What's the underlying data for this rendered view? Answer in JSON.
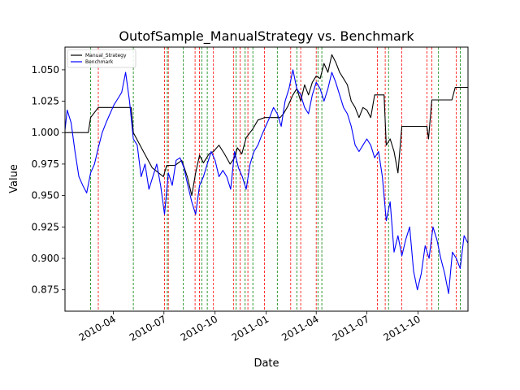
{
  "chart_data": {
    "type": "line",
    "title": "OutofSample_ManualStrategy vs. Benchmark",
    "xlabel": "Date",
    "ylabel": "Value",
    "x_range": [
      "2010-01-04",
      "2011-12-30"
    ],
    "ylim": [
      0.858,
      1.068
    ],
    "grid": false,
    "legend_position": "top-left",
    "xticks": [
      {
        "date": "2010-04-01",
        "label": "2010-04"
      },
      {
        "date": "2010-07-01",
        "label": "2010-07"
      },
      {
        "date": "2010-10-01",
        "label": "2010-10"
      },
      {
        "date": "2011-01-01",
        "label": "2011-01"
      },
      {
        "date": "2011-04-01",
        "label": "2011-04"
      },
      {
        "date": "2011-07-01",
        "label": "2011-07"
      },
      {
        "date": "2011-10-01",
        "label": "2011-10"
      }
    ],
    "yticks": [
      0.875,
      0.9,
      0.925,
      0.95,
      0.975,
      1.0,
      1.025,
      1.05
    ],
    "series": [
      {
        "name": "Manual_Strategy",
        "color": "#000000",
        "points": [
          [
            "2010-01-04",
            1.0
          ],
          [
            "2010-02-15",
            1.0
          ],
          [
            "2010-02-19",
            1.012
          ],
          [
            "2010-03-05",
            1.02
          ],
          [
            "2010-05-03",
            1.02
          ],
          [
            "2010-05-07",
            1.0
          ],
          [
            "2010-05-25",
            0.985
          ],
          [
            "2010-06-10",
            0.972
          ],
          [
            "2010-06-30",
            0.965
          ],
          [
            "2010-07-06",
            0.974
          ],
          [
            "2010-07-21",
            0.974
          ],
          [
            "2010-08-02",
            0.978
          ],
          [
            "2010-08-12",
            0.965
          ],
          [
            "2010-08-20",
            0.95
          ],
          [
            "2010-08-27",
            0.968
          ],
          [
            "2010-09-03",
            0.982
          ],
          [
            "2010-09-10",
            0.976
          ],
          [
            "2010-09-20",
            0.983
          ],
          [
            "2010-09-28",
            0.985
          ],
          [
            "2010-10-08",
            0.99
          ],
          [
            "2010-10-18",
            0.983
          ],
          [
            "2010-10-28",
            0.975
          ],
          [
            "2010-11-05",
            0.98
          ],
          [
            "2010-11-10",
            0.988
          ],
          [
            "2010-11-18",
            0.983
          ],
          [
            "2010-11-26",
            0.996
          ],
          [
            "2010-12-08",
            1.003
          ],
          [
            "2010-12-17",
            1.01
          ],
          [
            "2010-12-29",
            1.012
          ],
          [
            "2011-01-26",
            1.012
          ],
          [
            "2011-02-01",
            1.015
          ],
          [
            "2011-02-09",
            1.021
          ],
          [
            "2011-02-18",
            1.03
          ],
          [
            "2011-02-25",
            1.035
          ],
          [
            "2011-03-04",
            1.025
          ],
          [
            "2011-03-11",
            1.038
          ],
          [
            "2011-03-18",
            1.03
          ],
          [
            "2011-03-25",
            1.04
          ],
          [
            "2011-04-01",
            1.045
          ],
          [
            "2011-04-08",
            1.043
          ],
          [
            "2011-04-15",
            1.055
          ],
          [
            "2011-04-22",
            1.048
          ],
          [
            "2011-04-29",
            1.062
          ],
          [
            "2011-05-06",
            1.056
          ],
          [
            "2011-05-13",
            1.048
          ],
          [
            "2011-05-20",
            1.043
          ],
          [
            "2011-05-27",
            1.038
          ],
          [
            "2011-06-03",
            1.025
          ],
          [
            "2011-06-10",
            1.02
          ],
          [
            "2011-06-17",
            1.012
          ],
          [
            "2011-06-24",
            1.02
          ],
          [
            "2011-07-01",
            1.018
          ],
          [
            "2011-07-08",
            1.012
          ],
          [
            "2011-07-15",
            1.03
          ],
          [
            "2011-08-01",
            1.03
          ],
          [
            "2011-08-05",
            0.99
          ],
          [
            "2011-08-12",
            0.995
          ],
          [
            "2011-08-19",
            0.985
          ],
          [
            "2011-08-26",
            0.968
          ],
          [
            "2011-09-02",
            1.005
          ],
          [
            "2011-10-17",
            1.005
          ],
          [
            "2011-10-20",
            0.995
          ],
          [
            "2011-10-26",
            1.026
          ],
          [
            "2011-12-01",
            1.026
          ],
          [
            "2011-12-07",
            1.036
          ],
          [
            "2011-12-30",
            1.036
          ]
        ]
      },
      {
        "name": "Benchmark",
        "color": "#0000ff",
        "points": [
          [
            "2010-01-04",
            1.002
          ],
          [
            "2010-01-08",
            1.018
          ],
          [
            "2010-01-15",
            1.008
          ],
          [
            "2010-01-22",
            0.985
          ],
          [
            "2010-01-29",
            0.965
          ],
          [
            "2010-02-05",
            0.958
          ],
          [
            "2010-02-12",
            0.952
          ],
          [
            "2010-02-19",
            0.968
          ],
          [
            "2010-02-26",
            0.975
          ],
          [
            "2010-03-05",
            0.988
          ],
          [
            "2010-03-12",
            1.0
          ],
          [
            "2010-03-19",
            1.008
          ],
          [
            "2010-03-26",
            1.015
          ],
          [
            "2010-04-02",
            1.022
          ],
          [
            "2010-04-09",
            1.027
          ],
          [
            "2010-04-16",
            1.032
          ],
          [
            "2010-04-23",
            1.048
          ],
          [
            "2010-04-30",
            1.025
          ],
          [
            "2010-05-07",
            0.995
          ],
          [
            "2010-05-14",
            0.99
          ],
          [
            "2010-05-21",
            0.965
          ],
          [
            "2010-05-28",
            0.975
          ],
          [
            "2010-06-04",
            0.955
          ],
          [
            "2010-06-11",
            0.965
          ],
          [
            "2010-06-18",
            0.975
          ],
          [
            "2010-06-25",
            0.958
          ],
          [
            "2010-07-02",
            0.935
          ],
          [
            "2010-07-09",
            0.968
          ],
          [
            "2010-07-16",
            0.958
          ],
          [
            "2010-07-23",
            0.978
          ],
          [
            "2010-07-30",
            0.98
          ],
          [
            "2010-08-06",
            0.972
          ],
          [
            "2010-08-13",
            0.958
          ],
          [
            "2010-08-20",
            0.945
          ],
          [
            "2010-08-27",
            0.935
          ],
          [
            "2010-09-03",
            0.958
          ],
          [
            "2010-09-10",
            0.965
          ],
          [
            "2010-09-17",
            0.975
          ],
          [
            "2010-09-24",
            0.985
          ],
          [
            "2010-10-01",
            0.978
          ],
          [
            "2010-10-08",
            0.965
          ],
          [
            "2010-10-15",
            0.97
          ],
          [
            "2010-10-22",
            0.965
          ],
          [
            "2010-10-29",
            0.955
          ],
          [
            "2010-11-05",
            0.985
          ],
          [
            "2010-11-12",
            0.972
          ],
          [
            "2010-11-19",
            0.965
          ],
          [
            "2010-11-26",
            0.955
          ],
          [
            "2010-12-03",
            0.975
          ],
          [
            "2010-12-10",
            0.985
          ],
          [
            "2010-12-17",
            0.99
          ],
          [
            "2010-12-24",
            0.998
          ],
          [
            "2010-12-31",
            1.005
          ],
          [
            "2011-01-07",
            1.012
          ],
          [
            "2011-01-14",
            1.02
          ],
          [
            "2011-01-21",
            1.015
          ],
          [
            "2011-01-28",
            1.005
          ],
          [
            "2011-02-04",
            1.025
          ],
          [
            "2011-02-11",
            1.035
          ],
          [
            "2011-02-18",
            1.05
          ],
          [
            "2011-02-25",
            1.035
          ],
          [
            "2011-03-04",
            1.03
          ],
          [
            "2011-03-11",
            1.02
          ],
          [
            "2011-03-18",
            1.015
          ],
          [
            "2011-03-25",
            1.03
          ],
          [
            "2011-04-01",
            1.04
          ],
          [
            "2011-04-08",
            1.035
          ],
          [
            "2011-04-15",
            1.025
          ],
          [
            "2011-04-22",
            1.035
          ],
          [
            "2011-04-29",
            1.048
          ],
          [
            "2011-05-06",
            1.04
          ],
          [
            "2011-05-13",
            1.03
          ],
          [
            "2011-05-20",
            1.02
          ],
          [
            "2011-05-27",
            1.015
          ],
          [
            "2011-06-03",
            1.005
          ],
          [
            "2011-06-10",
            0.99
          ],
          [
            "2011-06-17",
            0.985
          ],
          [
            "2011-06-24",
            0.99
          ],
          [
            "2011-07-01",
            0.995
          ],
          [
            "2011-07-08",
            0.99
          ],
          [
            "2011-07-15",
            0.98
          ],
          [
            "2011-07-22",
            0.985
          ],
          [
            "2011-07-29",
            0.965
          ],
          [
            "2011-08-05",
            0.93
          ],
          [
            "2011-08-12",
            0.945
          ],
          [
            "2011-08-19",
            0.905
          ],
          [
            "2011-08-26",
            0.918
          ],
          [
            "2011-09-02",
            0.902
          ],
          [
            "2011-09-09",
            0.915
          ],
          [
            "2011-09-16",
            0.925
          ],
          [
            "2011-09-23",
            0.89
          ],
          [
            "2011-09-30",
            0.875
          ],
          [
            "2011-10-07",
            0.888
          ],
          [
            "2011-10-14",
            0.91
          ],
          [
            "2011-10-21",
            0.9
          ],
          [
            "2011-10-28",
            0.925
          ],
          [
            "2011-11-04",
            0.915
          ],
          [
            "2011-11-11",
            0.9
          ],
          [
            "2011-11-18",
            0.888
          ],
          [
            "2011-11-25",
            0.872
          ],
          [
            "2011-12-02",
            0.905
          ],
          [
            "2011-12-09",
            0.9
          ],
          [
            "2011-12-16",
            0.892
          ],
          [
            "2011-12-23",
            0.918
          ],
          [
            "2011-12-30",
            0.912
          ]
        ]
      }
    ],
    "vlines": {
      "long": {
        "color": "#008000",
        "dates": [
          "2010-02-19",
          "2010-05-07",
          "2010-07-07",
          "2010-08-05",
          "2010-09-07",
          "2010-09-17",
          "2010-11-08",
          "2010-11-24",
          "2010-12-08",
          "2011-01-21",
          "2011-02-25",
          "2011-04-04",
          "2011-04-11",
          "2011-08-09",
          "2011-11-07",
          "2011-12-16"
        ]
      },
      "short": {
        "color": "#ff0000",
        "dates": [
          "2010-03-05",
          "2010-07-02",
          "2010-07-09",
          "2010-08-26",
          "2010-09-03",
          "2010-09-28",
          "2010-11-03",
          "2010-11-15",
          "2010-11-29",
          "2010-12-29",
          "2011-02-14",
          "2011-03-04",
          "2011-04-01",
          "2011-07-20",
          "2011-08-03",
          "2011-09-02",
          "2011-10-17",
          "2011-10-26",
          "2011-12-09"
        ]
      }
    }
  }
}
